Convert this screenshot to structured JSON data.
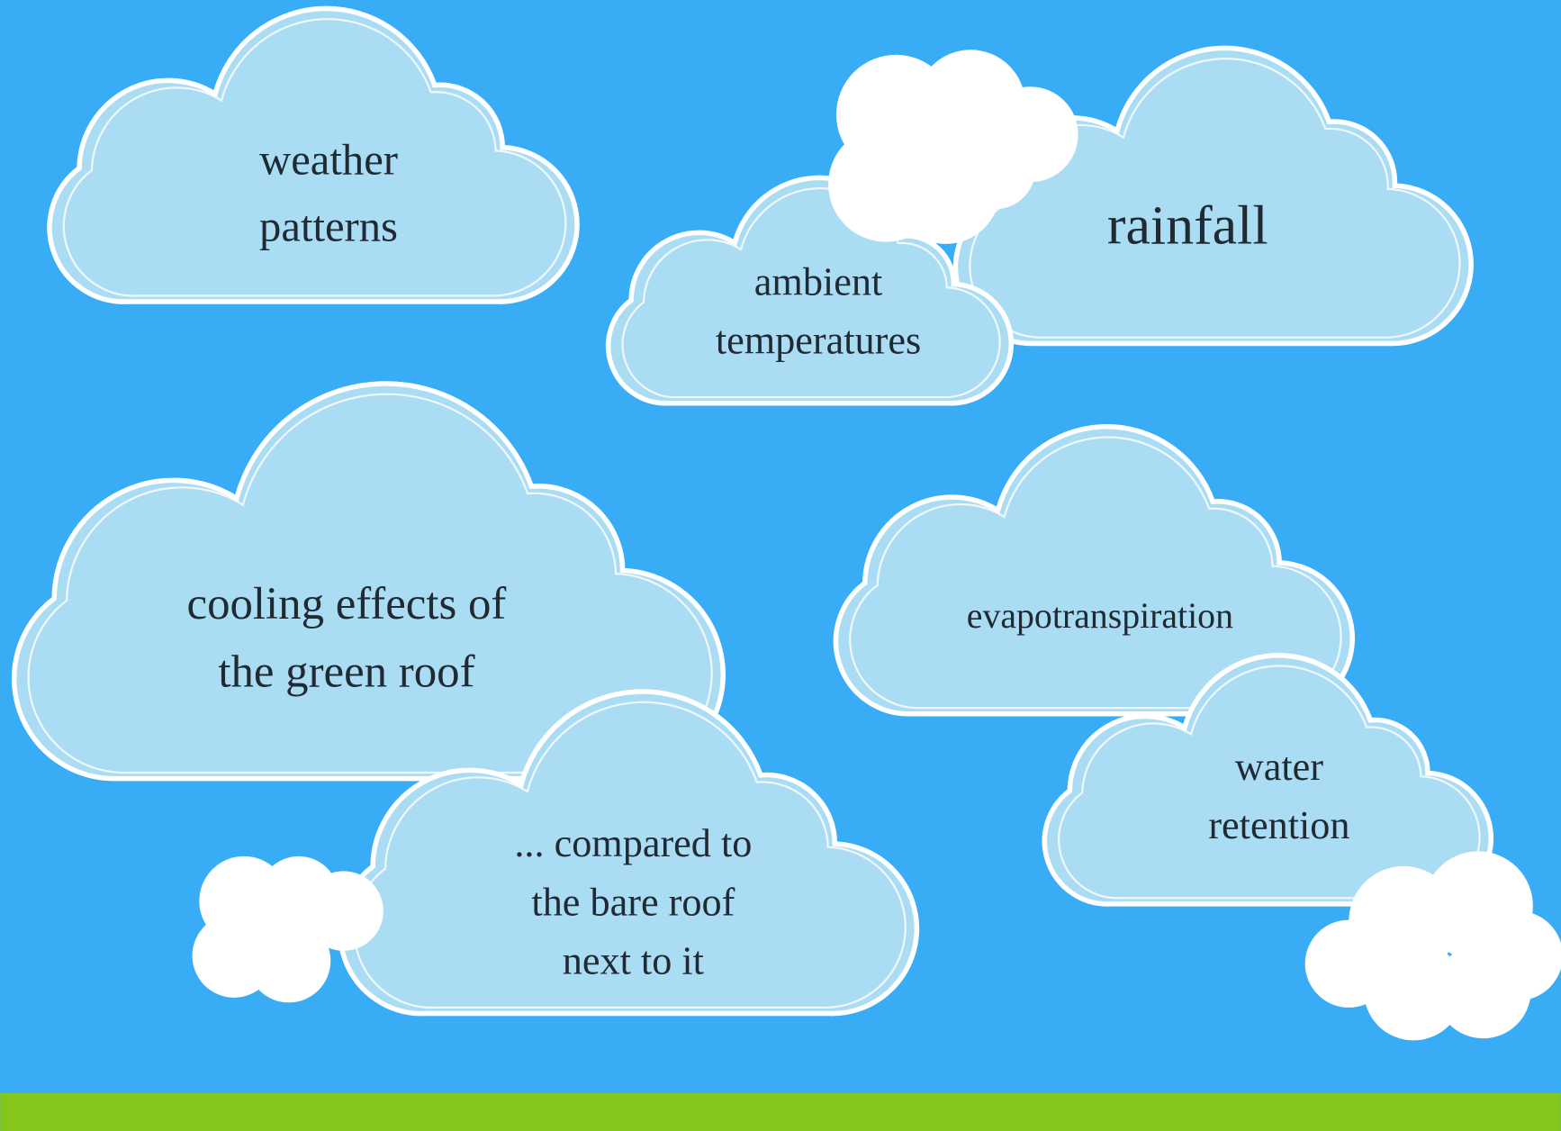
{
  "clouds": [
    {
      "lines": [
        "weather",
        "patterns"
      ]
    },
    {
      "lines": [
        "rainfall"
      ]
    },
    {
      "lines": [
        "ambient",
        "temperatures"
      ]
    },
    {
      "lines": [
        "cooling effects of",
        "the green roof"
      ]
    },
    {
      "lines": [
        "... compared to",
        "the bare roof",
        "next to it"
      ]
    },
    {
      "lines": [
        "evapotranspiration"
      ]
    },
    {
      "lines": [
        "water",
        "retention"
      ]
    }
  ]
}
